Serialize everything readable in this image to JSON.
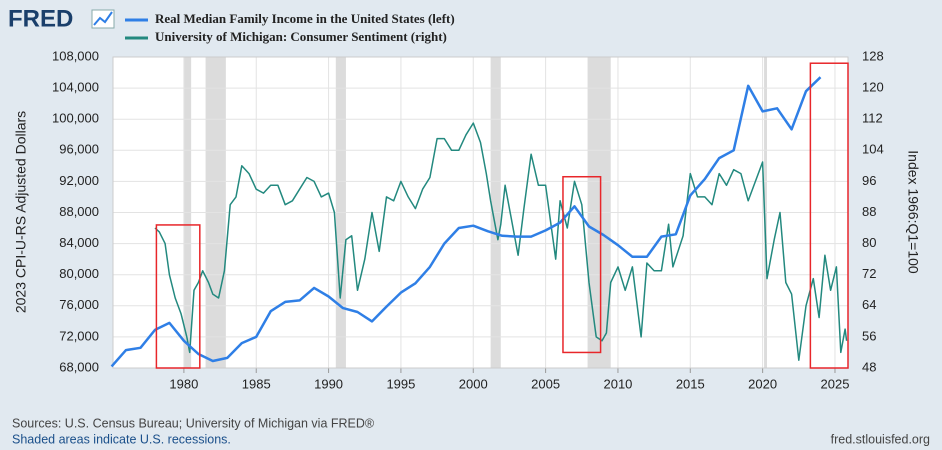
{
  "logo": "FRED",
  "chart_data": {
    "type": "line",
    "y_label": "2023 CPI-U-RS Adjusted Dollars",
    "y2_label": "Index 1966:Q1=100",
    "xlim": [
      1975.1,
      2025.9
    ],
    "xticks": [
      1980,
      1985,
      1990,
      1995,
      2000,
      2005,
      2010,
      2015,
      2020,
      2025
    ],
    "ylim": [
      68000,
      108000
    ],
    "yticks": [
      {
        "value": 68000,
        "label": "68,000"
      },
      {
        "value": 72000,
        "label": "72,000"
      },
      {
        "value": 76000,
        "label": "76,000"
      },
      {
        "value": 80000,
        "label": "80,000"
      },
      {
        "value": 84000,
        "label": "84,000"
      },
      {
        "value": 88000,
        "label": "88,000"
      },
      {
        "value": 92000,
        "label": "92,000"
      },
      {
        "value": 96000,
        "label": "96,000"
      },
      {
        "value": 100000,
        "label": "100,000"
      },
      {
        "value": 104000,
        "label": "104,000"
      },
      {
        "value": 108000,
        "label": "108,000"
      }
    ],
    "y2lim": [
      48,
      128
    ],
    "y2ticks": [
      48,
      56,
      64,
      72,
      80,
      88,
      96,
      104,
      112,
      120,
      128
    ],
    "grid": true,
    "recessions": [
      [
        1980.0,
        1980.5
      ],
      [
        1981.5,
        1982.9
      ],
      [
        1990.5,
        1991.2
      ],
      [
        2001.2,
        2001.9
      ],
      [
        2007.9,
        2009.5
      ],
      [
        2020.1,
        2020.3
      ]
    ],
    "highlights": [
      {
        "x": [
          1978.1,
          1981.1
        ],
        "y": [
          68000,
          86400
        ]
      },
      {
        "x": [
          2006.2,
          2008.8
        ],
        "y": [
          70000,
          92600
        ]
      },
      {
        "x": [
          2023.3,
          2025.9
        ],
        "y": [
          68000,
          107200
        ]
      }
    ],
    "highlight_color": "#e8262a",
    "series": [
      {
        "name": "Real Median Family Income in the United States (left)",
        "color": "#2f7fe6",
        "x": [
          1975,
          1976,
          1977,
          1978,
          1979,
          1980,
          1981,
          1982,
          1983,
          1984,
          1985,
          1986,
          1987,
          1988,
          1989,
          1990,
          1991,
          1992,
          1993,
          1994,
          1995,
          1996,
          1997,
          1998,
          1999,
          2000,
          2001,
          2002,
          2003,
          2004,
          2005,
          2006,
          2007,
          2008,
          2009,
          2010,
          2011,
          2012,
          2013,
          2014,
          2015,
          2016,
          2017,
          2018,
          2019,
          2020,
          2021,
          2022,
          2023,
          2024
        ],
        "values": [
          68200,
          70300,
          70600,
          72900,
          73800,
          71500,
          69800,
          68900,
          69300,
          71200,
          72000,
          75300,
          76500,
          76700,
          78300,
          77200,
          75700,
          75200,
          74000,
          75900,
          77700,
          78900,
          81000,
          84000,
          86000,
          86300,
          85600,
          85000,
          84900,
          84900,
          85700,
          86700,
          88800,
          86200,
          85100,
          83800,
          82300,
          82300,
          84900,
          85200,
          90200,
          92300,
          95000,
          96000,
          104300,
          101000,
          101400,
          98700,
          103600,
          105400
        ]
      },
      {
        "name": "University of Michigan: Consumer Sentiment (right)",
        "color": "#23897f",
        "axis": "y2",
        "x": [
          1978.0,
          1978.3,
          1978.7,
          1979.0,
          1979.4,
          1979.8,
          1980.2,
          1980.4,
          1980.7,
          1981.0,
          1981.3,
          1981.7,
          1982.0,
          1982.4,
          1982.8,
          1983.2,
          1983.6,
          1984.0,
          1984.5,
          1985.0,
          1985.5,
          1986.0,
          1986.5,
          1987.0,
          1987.5,
          1988.0,
          1988.5,
          1989.0,
          1989.5,
          1990.0,
          1990.4,
          1990.8,
          1991.2,
          1991.6,
          1992.0,
          1992.5,
          1993.0,
          1993.5,
          1994.0,
          1994.5,
          1995.0,
          1995.5,
          1996.0,
          1996.5,
          1997.0,
          1997.5,
          1998.0,
          1998.5,
          1999.0,
          1999.5,
          2000.0,
          2000.5,
          2000.9,
          2001.2,
          2001.7,
          2001.9,
          2002.2,
          2002.6,
          2003.1,
          2003.5,
          2004.0,
          2004.5,
          2005.0,
          2005.7,
          2006.0,
          2006.5,
          2007.0,
          2007.5,
          2008.0,
          2008.5,
          2008.9,
          2009.2,
          2009.5,
          2010.0,
          2010.5,
          2011.0,
          2011.6,
          2012.0,
          2012.5,
          2013.0,
          2013.5,
          2013.8,
          2014.5,
          2015.0,
          2015.5,
          2016.0,
          2016.5,
          2017.0,
          2017.5,
          2018.0,
          2018.5,
          2019.0,
          2019.5,
          2020.0,
          2020.3,
          2020.8,
          2021.2,
          2021.6,
          2022.0,
          2022.5,
          2023.0,
          2023.5,
          2023.9,
          2024.3,
          2024.7,
          2025.1,
          2025.4,
          2025.7,
          2025.8
        ],
        "values": [
          84,
          83,
          80,
          72,
          66,
          62,
          56,
          52,
          68,
          70,
          73,
          70,
          67,
          66,
          73,
          90,
          92,
          100,
          98,
          94,
          93,
          95,
          95,
          90,
          91,
          94,
          97,
          96,
          92,
          93,
          88,
          66,
          81,
          82,
          68,
          76,
          88,
          78,
          92,
          91,
          96,
          92,
          89,
          94,
          97,
          107,
          107,
          104,
          104,
          108,
          111,
          106,
          98,
          91,
          81,
          85,
          95,
          87,
          77,
          89,
          103,
          95,
          95,
          76,
          91,
          84,
          96,
          90,
          70,
          56,
          55,
          57,
          70,
          74,
          68,
          74,
          56,
          75,
          73,
          73,
          85,
          74,
          82,
          98,
          92,
          92,
          90,
          98,
          95,
          99,
          98,
          91,
          96,
          101,
          71,
          81,
          88,
          70,
          67,
          50,
          64,
          71,
          61,
          77,
          68,
          74,
          52,
          58,
          55
        ]
      }
    ]
  },
  "footer": {
    "sources": "Sources: U.S. Census Bureau; University of Michigan via FRED®",
    "recession_note": "Shaded areas indicate U.S. recessions.",
    "site": "fred.stlouisfed.org"
  }
}
